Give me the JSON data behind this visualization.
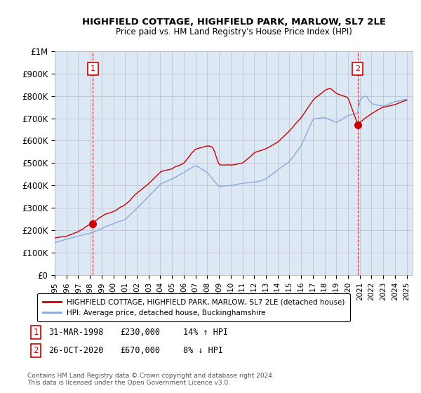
{
  "title": "HIGHFIELD COTTAGE, HIGHFIELD PARK, MARLOW, SL7 2LE",
  "subtitle": "Price paid vs. HM Land Registry's House Price Index (HPI)",
  "ylim": [
    0,
    1000000
  ],
  "yticks": [
    0,
    100000,
    200000,
    300000,
    400000,
    500000,
    600000,
    700000,
    800000,
    900000,
    1000000
  ],
  "ytick_labels": [
    "£0",
    "£100K",
    "£200K",
    "£300K",
    "£400K",
    "£500K",
    "£600K",
    "£700K",
    "£800K",
    "£900K",
    "£1M"
  ],
  "sale1_year": 1998.25,
  "sale1_price": 230000,
  "sale1_date": "31-MAR-1998",
  "sale1_hpi_text": "14% ↑ HPI",
  "sale2_year": 2020.83,
  "sale2_price": 670000,
  "sale2_date": "26-OCT-2020",
  "sale2_hpi_text": "8% ↓ HPI",
  "legend_label1": "HIGHFIELD COTTAGE, HIGHFIELD PARK, MARLOW, SL7 2LE (detached house)",
  "legend_label2": "HPI: Average price, detached house, Buckinghamshire",
  "footnote": "Contains HM Land Registry data © Crown copyright and database right 2024.\nThis data is licensed under the Open Government Licence v3.0.",
  "line_color_red": "#cc0000",
  "line_color_blue": "#88aadd",
  "bg_plot": "#dde8f5",
  "background_color": "#ffffff",
  "grid_color": "#bbbbcc",
  "sale_annotation1_num": "1",
  "sale_annotation2_num": "2"
}
